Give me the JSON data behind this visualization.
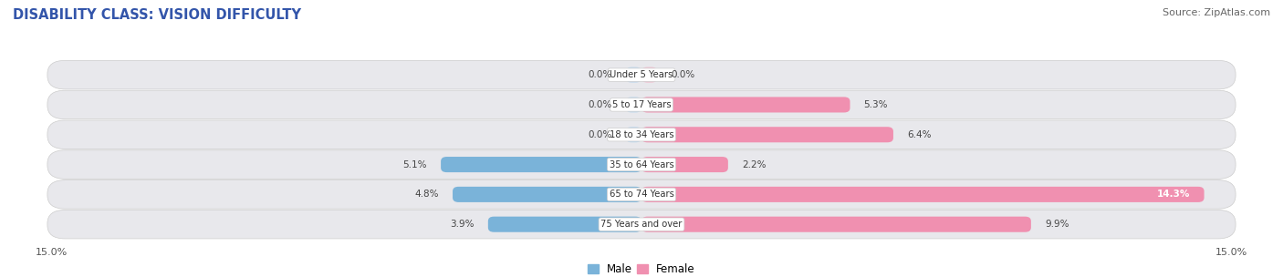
{
  "title": "DISABILITY CLASS: VISION DIFFICULTY",
  "source": "Source: ZipAtlas.com",
  "categories": [
    "Under 5 Years",
    "5 to 17 Years",
    "18 to 34 Years",
    "35 to 64 Years",
    "65 to 74 Years",
    "75 Years and over"
  ],
  "male_values": [
    0.0,
    0.0,
    0.0,
    5.1,
    4.8,
    3.9
  ],
  "female_values": [
    0.0,
    5.3,
    6.4,
    2.2,
    14.3,
    9.9
  ],
  "xlim": 15.0,
  "male_color": "#7ab3d9",
  "female_color": "#f090b0",
  "male_label": "Male",
  "female_label": "Female",
  "bg_color": "#ffffff",
  "row_bg_color": "#e8e8ec",
  "title_fontsize": 10.5,
  "source_fontsize": 8,
  "bar_height": 0.52,
  "label_stub": 0.4
}
